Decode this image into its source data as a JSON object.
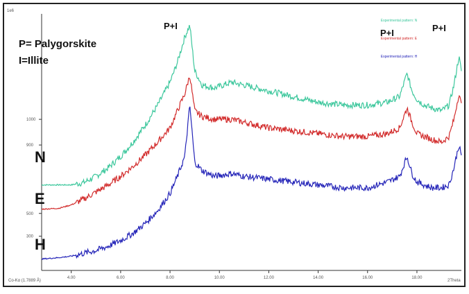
{
  "corner_label": "1e6",
  "legend_labels": {
    "abbrev_p": "P= Palygorskite",
    "abbrev_i": "I=Illite"
  },
  "sample_labels": {
    "n": "N",
    "e": "E",
    "h": "H"
  },
  "peak_labels": {
    "peak1": "P+I",
    "peak2": "P+I",
    "peak3": "P+I"
  },
  "footer": {
    "instrument": "Co-Kα (1.7889 Å)",
    "unit": "2Theta"
  },
  "colors": {
    "n": "#3cc79c",
    "e": "#d22b2b",
    "h": "#2424b8",
    "axis": "#333333"
  },
  "chart_data": {
    "type": "line",
    "xlabel": "2Theta",
    "xlim": [
      2.8,
      19.8
    ],
    "x_ticks": [
      "4.00",
      "6.00",
      "8.00",
      "10.00",
      "12.00",
      "14.00",
      "16.00",
      "18.00"
    ],
    "y_ticks": [
      "1000",
      "900",
      "500",
      "300"
    ],
    "annotations": [
      "P+I",
      "P+I",
      "P+I"
    ],
    "series": [
      {
        "name": "Experimental pattern: N",
        "key": "n",
        "x": [
          2.8,
          3.5,
          4.0,
          4.5,
          5.0,
          5.5,
          6.0,
          6.5,
          7.0,
          7.5,
          8.0,
          8.3,
          8.6,
          8.8,
          9.0,
          9.3,
          9.8,
          10.5,
          11.0,
          12.0,
          13.0,
          14.0,
          15.0,
          16.0,
          16.8,
          17.3,
          17.6,
          17.8,
          18.0,
          18.3,
          18.6,
          19.0,
          19.3,
          19.5,
          19.7,
          19.8
        ],
        "y": [
          1.0,
          1.0,
          1.0,
          1.08,
          1.3,
          1.6,
          2.0,
          2.5,
          3.1,
          3.8,
          4.6,
          5.3,
          6.2,
          6.6,
          5.0,
          4.5,
          4.4,
          4.6,
          4.5,
          4.3,
          4.1,
          3.9,
          3.8,
          3.8,
          3.9,
          4.1,
          4.9,
          4.3,
          4.0,
          3.8,
          3.7,
          3.6,
          3.8,
          4.5,
          5.5,
          5.0
        ]
      },
      {
        "name": "Experimental pattern: E",
        "key": "e",
        "x": [
          2.8,
          3.5,
          4.0,
          4.5,
          5.0,
          5.5,
          6.0,
          6.5,
          7.0,
          7.5,
          8.0,
          8.3,
          8.6,
          8.8,
          9.0,
          9.3,
          9.8,
          10.5,
          11.0,
          12.0,
          13.0,
          14.0,
          15.0,
          16.0,
          16.8,
          17.3,
          17.6,
          17.8,
          18.0,
          18.3,
          18.6,
          19.0,
          19.3,
          19.5,
          19.7,
          19.8
        ],
        "y": [
          0.15,
          0.18,
          0.3,
          0.5,
          0.75,
          1.0,
          1.3,
          1.65,
          2.05,
          2.5,
          3.0,
          3.6,
          4.2,
          4.85,
          3.6,
          3.4,
          3.3,
          3.3,
          3.2,
          3.0,
          2.9,
          2.8,
          2.7,
          2.7,
          2.8,
          3.0,
          3.7,
          3.2,
          2.8,
          2.7,
          2.6,
          2.5,
          2.7,
          3.3,
          4.2,
          3.8
        ]
      },
      {
        "name": "Experimental pattern: H",
        "key": "h",
        "x": [
          2.8,
          3.5,
          4.0,
          4.5,
          5.0,
          5.5,
          6.0,
          6.5,
          7.0,
          7.5,
          8.0,
          8.3,
          8.6,
          8.8,
          9.0,
          9.3,
          9.8,
          10.5,
          11.0,
          12.0,
          13.0,
          14.0,
          15.0,
          16.0,
          16.8,
          17.3,
          17.6,
          17.8,
          18.0,
          18.3,
          18.6,
          19.0,
          19.3,
          19.5,
          19.7,
          19.8
        ],
        "y": [
          -1.6,
          -1.55,
          -1.5,
          -1.4,
          -1.3,
          -1.15,
          -0.95,
          -0.7,
          -0.35,
          0.1,
          0.7,
          1.3,
          2.0,
          3.8,
          1.8,
          1.5,
          1.3,
          1.4,
          1.3,
          1.2,
          1.1,
          1.0,
          0.9,
          0.9,
          1.1,
          1.3,
          2.0,
          1.4,
          1.1,
          1.0,
          0.9,
          0.9,
          1.0,
          1.6,
          2.4,
          2.0
        ]
      }
    ]
  }
}
